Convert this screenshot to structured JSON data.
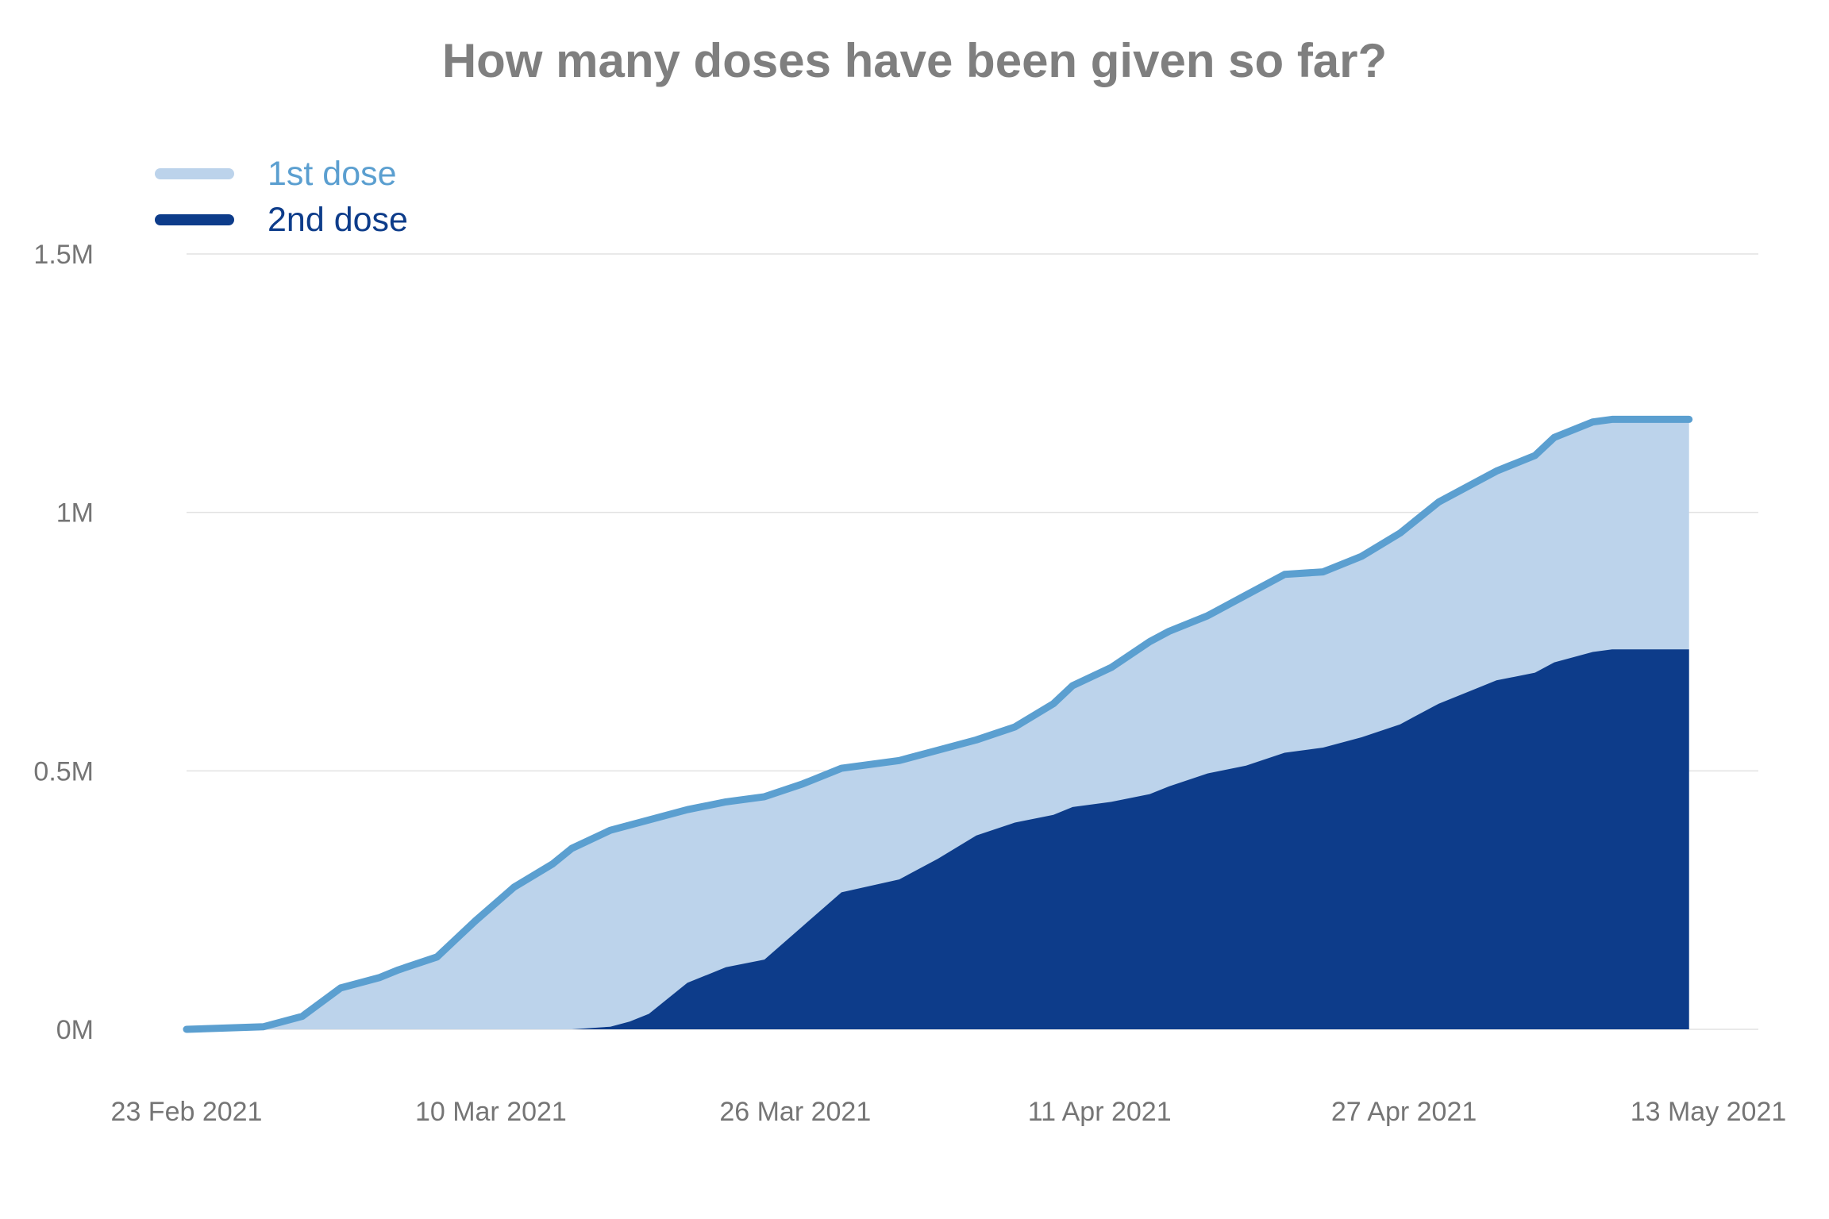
{
  "chart_data": {
    "type": "area",
    "title": "How many doses have been given so far?",
    "xlabel": "",
    "ylabel": "",
    "ylim": [
      0,
      1500000
    ],
    "y_ticks": [
      {
        "value": 0,
        "label": "0M"
      },
      {
        "value": 500000,
        "label": "0.5M"
      },
      {
        "value": 1000000,
        "label": "1M"
      },
      {
        "value": 1500000,
        "label": "1.5M"
      }
    ],
    "x_ticks": [
      "23 Feb 2021",
      "10 Mar 2021",
      "26 Mar 2021",
      "11 Apr 2021",
      "27 Apr 2021",
      "13 May 2021"
    ],
    "x_range": [
      "2021-02-23",
      "2021-05-13"
    ],
    "grid": true,
    "legend_position": "top-left",
    "x": [
      "2021-02-23",
      "2021-02-27",
      "2021-03-01",
      "2021-03-03",
      "2021-03-05",
      "2021-03-06",
      "2021-03-08",
      "2021-03-09",
      "2021-03-10",
      "2021-03-12",
      "2021-03-14",
      "2021-03-15",
      "2021-03-17",
      "2021-03-18",
      "2021-03-19",
      "2021-03-21",
      "2021-03-23",
      "2021-03-25",
      "2021-03-27",
      "2021-03-29",
      "2021-04-01",
      "2021-04-03",
      "2021-04-05",
      "2021-04-07",
      "2021-04-09",
      "2021-04-10",
      "2021-04-12",
      "2021-04-14",
      "2021-04-15",
      "2021-04-17",
      "2021-04-19",
      "2021-04-21",
      "2021-04-23",
      "2021-04-25",
      "2021-04-27",
      "2021-04-29",
      "2021-05-01",
      "2021-05-02",
      "2021-05-04",
      "2021-05-05",
      "2021-05-07",
      "2021-05-08",
      "2021-05-10",
      "2021-05-11",
      "2021-05-12"
    ],
    "series": [
      {
        "name": "1st dose",
        "color": "#5b9fd0",
        "fill": "#bcd3eb",
        "values": [
          0,
          5000,
          25000,
          80000,
          100000,
          115000,
          140000,
          175000,
          210000,
          275000,
          320000,
          350000,
          385000,
          395000,
          405000,
          425000,
          440000,
          450000,
          475000,
          505000,
          520000,
          540000,
          560000,
          585000,
          630000,
          665000,
          700000,
          750000,
          770000,
          800000,
          840000,
          880000,
          885000,
          915000,
          960000,
          1020000,
          1060000,
          1080000,
          1110000,
          1145000,
          1175000,
          1180000,
          1180000,
          1180000,
          1180000
        ]
      },
      {
        "name": "2nd dose",
        "color": "#0d3c8a",
        "fill": "#0d3c8a",
        "values": [
          0,
          0,
          0,
          0,
          0,
          0,
          0,
          0,
          0,
          0,
          0,
          0,
          5000,
          15000,
          30000,
          90000,
          120000,
          135000,
          200000,
          265000,
          290000,
          330000,
          375000,
          400000,
          415000,
          430000,
          440000,
          455000,
          470000,
          495000,
          510000,
          535000,
          545000,
          565000,
          590000,
          630000,
          660000,
          675000,
          690000,
          710000,
          730000,
          735000,
          735000,
          735000,
          735000
        ]
      }
    ]
  }
}
